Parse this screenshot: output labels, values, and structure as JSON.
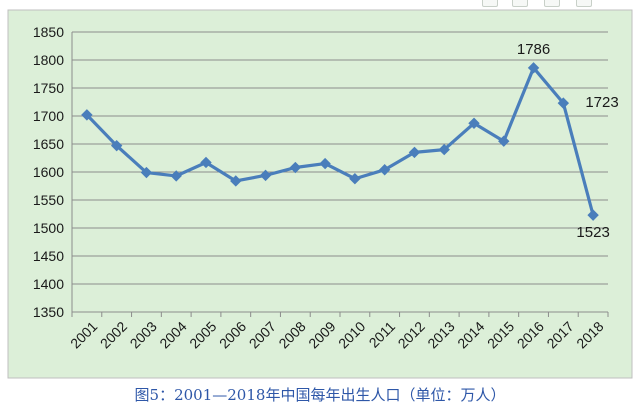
{
  "caption": "图5：2001—2018年中国每年出生人口（单位：万人）",
  "toolbar": {
    "icons": [
      "toolbar-icon-1",
      "toolbar-icon-2",
      "toolbar-icon-3",
      "toolbar-icon-4"
    ]
  },
  "colors": {
    "plot_background": "#dcefd8",
    "frame_background": "#ffffff",
    "frame_border": "#bfbfbf",
    "gridline": "#8c8c8c",
    "series": "#4a7ebb",
    "text": "#1a1a1a",
    "caption": "#2e57a8"
  },
  "chart_data": {
    "type": "line",
    "title": "",
    "xlabel": "",
    "ylabel": "",
    "categories": [
      "2001",
      "2002",
      "2003",
      "2004",
      "2005",
      "2006",
      "2007",
      "2008",
      "2009",
      "2010",
      "2011",
      "2012",
      "2013",
      "2014",
      "2015",
      "2016",
      "2017",
      "2018"
    ],
    "series": [
      {
        "values": [
          1702,
          1647,
          1599,
          1593,
          1617,
          1584,
          1594,
          1608,
          1615,
          1588,
          1604,
          1635,
          1640,
          1687,
          1655,
          1786,
          1723,
          1523
        ]
      }
    ],
    "ylim": [
      1350,
      1850
    ],
    "yticks": [
      1350,
      1400,
      1450,
      1500,
      1550,
      1600,
      1650,
      1700,
      1750,
      1800,
      1850
    ],
    "grid": true,
    "marker": "diamond",
    "legend": "none",
    "data_labels": [
      {
        "category": "2016",
        "text": "1786"
      },
      {
        "category": "2017",
        "text": "1723"
      },
      {
        "category": "2018",
        "text": "1523"
      }
    ]
  }
}
